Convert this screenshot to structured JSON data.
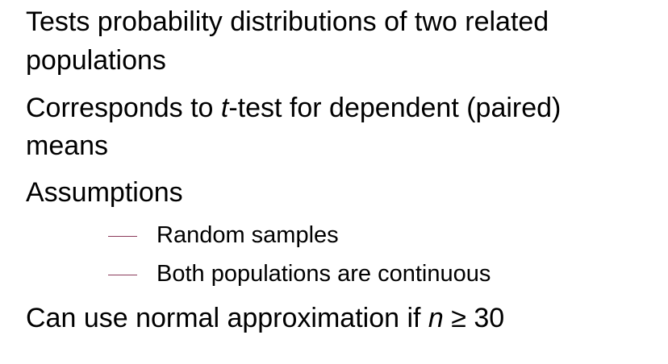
{
  "bullets": {
    "b1_line1": "Tests probability distributions of two related",
    "b1_line2": "populations",
    "b2_pre": "Corresponds to ",
    "b2_var": "t",
    "b2_post": "-test for dependent (paired)",
    "b2_line2": "means",
    "b3": "Assumptions",
    "sub1": "Random samples",
    "sub2": "Both populations are continuous",
    "b4_pre": "Can use normal approximation if ",
    "b4_var": "n",
    "b4_post": " ≥ 30"
  },
  "colors": {
    "text": "#000000",
    "sub_dash": "#8a3a5a",
    "background": "#ffffff"
  }
}
